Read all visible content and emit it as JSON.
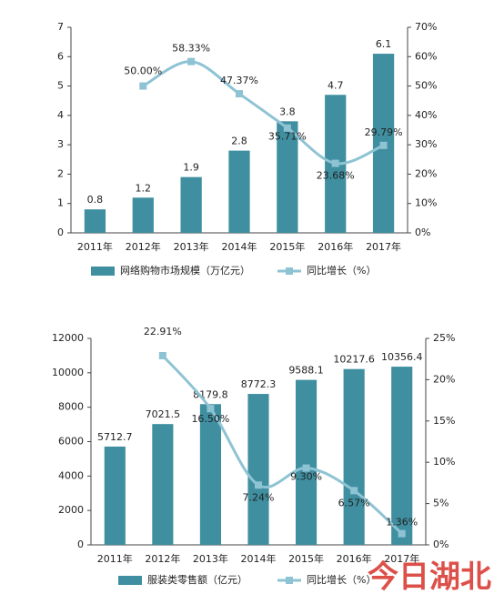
{
  "chart_data": [
    {
      "type": "bar-line",
      "categories": [
        "2011年",
        "2012年",
        "2013年",
        "2014年",
        "2015年",
        "2016年",
        "2017年"
      ],
      "series": [
        {
          "name": "网络购物市场规模（万亿元）",
          "color": "#3f8fa0",
          "values": [
            0.8,
            1.2,
            1.9,
            2.8,
            3.8,
            4.7,
            6.1
          ]
        },
        {
          "name": "同比增长（%）",
          "color": "#8ec3d3",
          "axis": "y2",
          "values": [
            null,
            50.0,
            58.33,
            47.37,
            35.71,
            23.68,
            29.79
          ],
          "value_labels": [
            null,
            "50.00%",
            "58.33%",
            "47.37%",
            "35.71%",
            "23.68%",
            "29.79%"
          ]
        }
      ],
      "ylim": [
        0,
        7
      ],
      "yticks": [
        0,
        1,
        2,
        3,
        4,
        5,
        6,
        7
      ],
      "y2lim": [
        0,
        70
      ],
      "y2ticks": [
        {
          "value": 0,
          "label": "0%"
        },
        {
          "value": 10,
          "label": "10%"
        },
        {
          "value": 20,
          "label": "20%"
        },
        {
          "value": 30,
          "label": "30%"
        },
        {
          "value": 40,
          "label": "40%"
        },
        {
          "value": 50,
          "label": "50%"
        },
        {
          "value": 60,
          "label": "60%"
        },
        {
          "value": 70,
          "label": "70%"
        }
      ]
    },
    {
      "type": "bar-line",
      "categories": [
        "2011年",
        "2012年",
        "2013年",
        "2014年",
        "2015年",
        "2016年",
        "2017年"
      ],
      "series": [
        {
          "name": "服装类零售额（亿元）",
          "color": "#3f8fa0",
          "values": [
            5712.7,
            7021.5,
            8179.8,
            8772.3,
            9588.1,
            10217.6,
            10356.4
          ]
        },
        {
          "name": "同比增长（%）",
          "color": "#8ec3d3",
          "axis": "y2",
          "values": [
            null,
            22.91,
            16.5,
            7.24,
            9.3,
            6.57,
            1.36
          ],
          "value_labels": [
            null,
            "22.91%",
            "16.50%",
            "7.24%",
            "9.30%",
            "6.57%",
            "1.36%"
          ]
        }
      ],
      "ylim": [
        0,
        12000
      ],
      "yticks": [
        0,
        2000,
        4000,
        6000,
        8000,
        10000,
        12000
      ],
      "y2lim": [
        0,
        25
      ],
      "y2ticks": [
        {
          "value": 0,
          "label": "0%"
        },
        {
          "value": 5,
          "label": "5%"
        },
        {
          "value": 10,
          "label": "10%"
        },
        {
          "value": 15,
          "label": "15%"
        },
        {
          "value": 20,
          "label": "20%"
        },
        {
          "value": 25,
          "label": "25%"
        }
      ]
    }
  ],
  "watermark": "今日湖北"
}
